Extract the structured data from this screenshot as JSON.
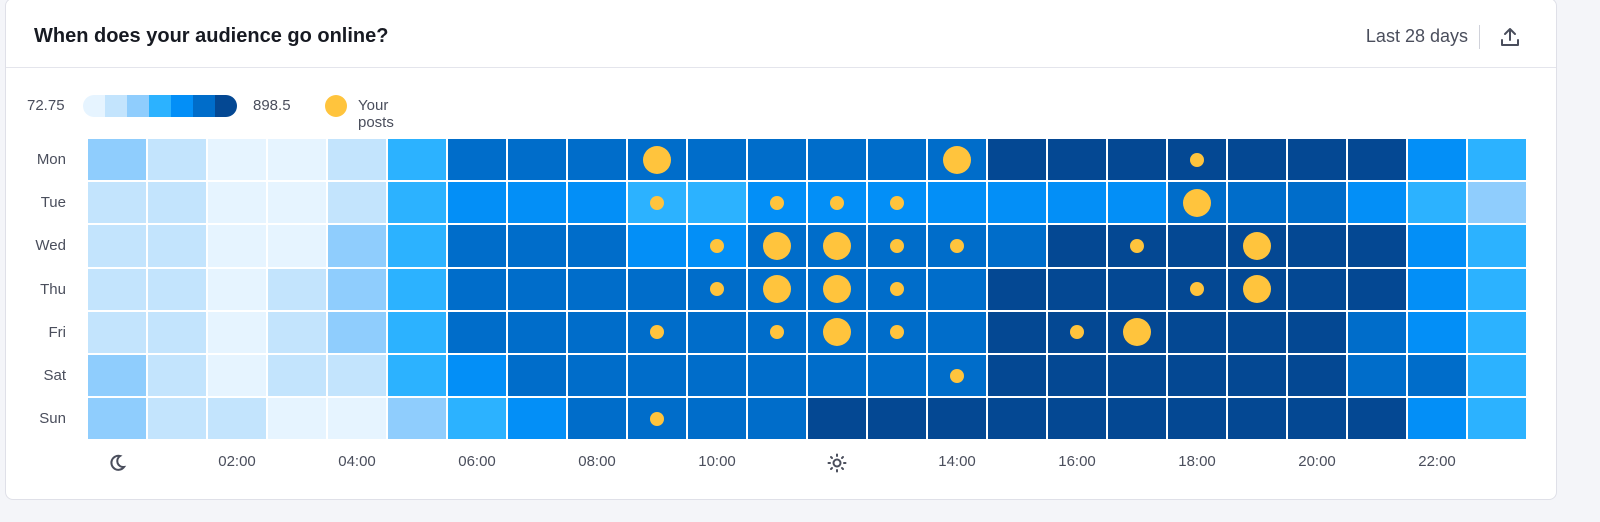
{
  "header": {
    "title": "When does your audience go online?",
    "period": "Last 28 days",
    "export_icon": "upload-icon"
  },
  "legend": {
    "min_label": "72.75",
    "max_label": "898.5",
    "posts_label": "Your posts"
  },
  "colors": {
    "scale": [
      "#e6f4ff",
      "#c3e4fd",
      "#8fcdfd",
      "#2cb2ff",
      "#038ff7",
      "#006dca",
      "#044893"
    ],
    "post": "#ffc43d"
  },
  "chart_data": {
    "type": "heatmap",
    "title": "When does your audience go online?",
    "value_range": [
      72.75,
      898.5
    ],
    "levels": 7,
    "rows": [
      "Mon",
      "Tue",
      "Wed",
      "Thu",
      "Fri",
      "Sat",
      "Sun"
    ],
    "x_tick_labels": [
      {
        "hour": 0,
        "icon": "moon-icon"
      },
      {
        "hour": 2,
        "label": "02:00"
      },
      {
        "hour": 4,
        "label": "04:00"
      },
      {
        "hour": 6,
        "label": "06:00"
      },
      {
        "hour": 8,
        "label": "08:00"
      },
      {
        "hour": 10,
        "label": "10:00"
      },
      {
        "hour": 12,
        "icon": "sun-icon"
      },
      {
        "hour": 14,
        "label": "14:00"
      },
      {
        "hour": 16,
        "label": "16:00"
      },
      {
        "hour": 18,
        "label": "18:00"
      },
      {
        "hour": 20,
        "label": "20:00"
      },
      {
        "hour": 22,
        "label": "22:00"
      }
    ],
    "intensity_level": [
      [
        2,
        1,
        0,
        0,
        1,
        3,
        5,
        5,
        5,
        5,
        5,
        5,
        5,
        5,
        5,
        6,
        6,
        6,
        6,
        6,
        6,
        6,
        4,
        3
      ],
      [
        1,
        1,
        0,
        0,
        1,
        3,
        4,
        4,
        4,
        3,
        3,
        4,
        4,
        4,
        4,
        4,
        4,
        4,
        5,
        5,
        5,
        4,
        3,
        2
      ],
      [
        1,
        1,
        0,
        0,
        2,
        3,
        5,
        5,
        5,
        4,
        4,
        5,
        5,
        5,
        5,
        5,
        6,
        6,
        6,
        6,
        6,
        6,
        4,
        3
      ],
      [
        1,
        1,
        0,
        1,
        2,
        3,
        5,
        5,
        5,
        5,
        5,
        5,
        5,
        5,
        5,
        6,
        6,
        6,
        6,
        6,
        6,
        6,
        4,
        3
      ],
      [
        1,
        1,
        0,
        1,
        2,
        3,
        5,
        5,
        5,
        5,
        5,
        5,
        5,
        5,
        5,
        6,
        6,
        6,
        6,
        6,
        6,
        5,
        4,
        3
      ],
      [
        2,
        1,
        0,
        1,
        1,
        3,
        4,
        5,
        5,
        5,
        5,
        5,
        5,
        5,
        5,
        6,
        6,
        6,
        6,
        6,
        6,
        5,
        5,
        3
      ],
      [
        2,
        1,
        1,
        0,
        0,
        2,
        3,
        4,
        5,
        5,
        5,
        5,
        6,
        6,
        6,
        6,
        6,
        6,
        6,
        6,
        6,
        6,
        4,
        3
      ]
    ],
    "posts": [
      [
        0,
        0,
        0,
        0,
        0,
        0,
        0,
        0,
        0,
        2,
        0,
        0,
        0,
        0,
        2,
        0,
        0,
        0,
        1,
        0,
        0,
        0,
        0,
        0
      ],
      [
        0,
        0,
        0,
        0,
        0,
        0,
        0,
        0,
        0,
        1,
        0,
        1,
        1,
        1,
        0,
        0,
        0,
        0,
        2,
        0,
        0,
        0,
        0,
        0
      ],
      [
        0,
        0,
        0,
        0,
        0,
        0,
        0,
        0,
        0,
        0,
        1,
        2,
        2,
        1,
        1,
        0,
        0,
        1,
        0,
        2,
        0,
        0,
        0,
        0
      ],
      [
        0,
        0,
        0,
        0,
        0,
        0,
        0,
        0,
        0,
        0,
        1,
        2,
        2,
        1,
        0,
        0,
        0,
        0,
        1,
        2,
        0,
        0,
        0,
        0
      ],
      [
        0,
        0,
        0,
        0,
        0,
        0,
        0,
        0,
        0,
        1,
        0,
        1,
        2,
        1,
        0,
        0,
        1,
        2,
        0,
        0,
        0,
        0,
        0,
        0
      ],
      [
        0,
        0,
        0,
        0,
        0,
        0,
        0,
        0,
        0,
        0,
        0,
        0,
        0,
        0,
        1,
        0,
        0,
        0,
        0,
        0,
        0,
        0,
        0,
        0
      ],
      [
        0,
        0,
        0,
        0,
        0,
        0,
        0,
        0,
        0,
        1,
        0,
        0,
        0,
        0,
        0,
        0,
        0,
        0,
        0,
        0,
        0,
        0,
        0,
        0
      ]
    ]
  }
}
